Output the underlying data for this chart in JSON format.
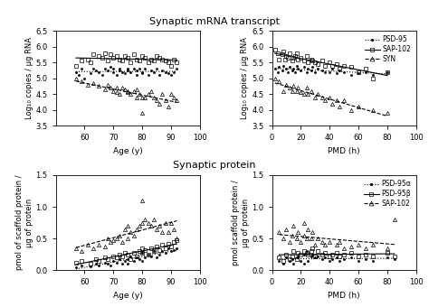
{
  "title_top": "Synaptic mRNA transcript",
  "title_bottom": "Synaptic protein",
  "mrna_age": {
    "xlabel": "Age (y)",
    "ylabel": "Log₁₀ copies / µg RNA",
    "xlim": [
      50,
      100
    ],
    "ylim": [
      3.5,
      6.5
    ],
    "xticks": [
      60,
      70,
      80,
      90,
      100
    ],
    "yticks": [
      3.5,
      4.0,
      4.5,
      5.0,
      5.5,
      6.0,
      6.5
    ],
    "psd95_x": [
      57,
      58,
      59,
      60,
      62,
      63,
      64,
      65,
      66,
      67,
      68,
      69,
      70,
      70,
      71,
      72,
      72,
      73,
      74,
      75,
      75,
      76,
      77,
      78,
      78,
      79,
      80,
      80,
      81,
      82,
      83,
      84,
      85,
      86,
      87,
      88,
      89,
      90,
      91,
      92
    ],
    "psd95_y": [
      5.2,
      5.1,
      5.3,
      5.0,
      5.15,
      5.3,
      5.25,
      5.2,
      5.1,
      5.3,
      5.25,
      5.35,
      5.2,
      5.3,
      5.1,
      5.25,
      5.3,
      5.2,
      5.15,
      5.3,
      5.25,
      5.2,
      5.3,
      5.1,
      5.25,
      5.3,
      5.2,
      5.15,
      5.3,
      5.1,
      5.25,
      5.2,
      5.3,
      5.1,
      5.25,
      5.2,
      5.15,
      5.1,
      5.2,
      5.3
    ],
    "sap102_x": [
      57,
      59,
      61,
      62,
      63,
      65,
      66,
      67,
      68,
      69,
      70,
      71,
      72,
      73,
      74,
      75,
      76,
      77,
      78,
      79,
      80,
      81,
      82,
      83,
      84,
      85,
      86,
      87,
      88,
      89,
      90,
      91,
      92
    ],
    "sap102_y": [
      5.4,
      5.55,
      5.6,
      5.5,
      5.75,
      5.7,
      5.65,
      5.8,
      5.55,
      5.75,
      5.65,
      5.7,
      5.6,
      5.55,
      5.7,
      5.65,
      5.5,
      5.75,
      5.6,
      5.55,
      5.7,
      5.65,
      5.5,
      5.6,
      5.55,
      5.7,
      5.65,
      5.6,
      5.55,
      5.5,
      5.4,
      5.6,
      5.5
    ],
    "syn_x": [
      57,
      59,
      61,
      63,
      65,
      67,
      68,
      69,
      70,
      71,
      71,
      72,
      73,
      74,
      75,
      75,
      76,
      77,
      78,
      78,
      79,
      80,
      80,
      81,
      82,
      83,
      84,
      85,
      86,
      87,
      88,
      89,
      90,
      91,
      92
    ],
    "syn_y": [
      5.0,
      4.9,
      4.8,
      4.85,
      4.75,
      4.65,
      4.8,
      4.7,
      4.6,
      4.55,
      4.7,
      4.5,
      4.7,
      4.65,
      4.55,
      4.6,
      4.5,
      4.6,
      4.4,
      4.65,
      4.5,
      3.9,
      4.4,
      4.4,
      4.5,
      4.6,
      4.4,
      4.3,
      4.2,
      4.5,
      4.3,
      4.1,
      4.5,
      4.4,
      4.3
    ],
    "psd95_reg": [
      57,
      92,
      5.22,
      5.2
    ],
    "sap102_reg": [
      57,
      92,
      5.35,
      5.35
    ],
    "syn_reg": [
      57,
      92,
      4.85,
      4.8
    ]
  },
  "mrna_pmd": {
    "xlabel": "PMD (h)",
    "ylabel": "Log₁₀ copies / µg RNA",
    "xlim": [
      0,
      100
    ],
    "ylim": [
      3.5,
      6.5
    ],
    "xticks": [
      0,
      20,
      40,
      60,
      80,
      100
    ],
    "yticks": [
      3.5,
      4.0,
      4.5,
      5.0,
      5.5,
      6.0,
      6.5
    ],
    "psd95_x": [
      2,
      4,
      5,
      7,
      8,
      10,
      11,
      12,
      14,
      15,
      16,
      17,
      18,
      20,
      22,
      24,
      25,
      27,
      28,
      30,
      32,
      35,
      37,
      40,
      42,
      45,
      47,
      50,
      55,
      60,
      65,
      70,
      80
    ],
    "psd95_y": [
      5.3,
      5.2,
      5.35,
      5.25,
      5.4,
      5.3,
      5.2,
      5.35,
      5.25,
      5.3,
      5.2,
      5.4,
      5.3,
      5.25,
      5.35,
      5.2,
      5.3,
      5.25,
      5.35,
      5.2,
      5.3,
      5.25,
      5.2,
      5.2,
      5.3,
      5.15,
      5.25,
      5.2,
      5.1,
      5.15,
      5.2,
      5.1,
      5.2
    ],
    "sap102_x": [
      2,
      4,
      5,
      7,
      8,
      9,
      10,
      11,
      12,
      14,
      15,
      16,
      17,
      18,
      20,
      22,
      24,
      25,
      27,
      28,
      30,
      32,
      35,
      37,
      40,
      42,
      45,
      47,
      50,
      55,
      60,
      65,
      70,
      80
    ],
    "sap102_y": [
      5.9,
      5.8,
      5.6,
      5.75,
      5.85,
      5.6,
      5.7,
      5.65,
      5.8,
      5.55,
      5.65,
      5.7,
      5.8,
      5.6,
      5.65,
      5.55,
      5.7,
      5.5,
      5.6,
      5.55,
      5.5,
      5.45,
      5.55,
      5.4,
      5.5,
      5.4,
      5.45,
      5.3,
      5.4,
      5.35,
      5.2,
      5.3,
      5.0,
      5.2
    ],
    "syn_x": [
      2,
      5,
      8,
      10,
      12,
      14,
      15,
      17,
      18,
      20,
      22,
      24,
      25,
      27,
      30,
      32,
      35,
      37,
      40,
      42,
      45,
      47,
      50,
      55,
      60,
      70,
      80
    ],
    "syn_y": [
      5.0,
      4.9,
      4.6,
      4.8,
      4.7,
      4.6,
      4.75,
      4.6,
      4.7,
      4.55,
      4.5,
      4.7,
      4.5,
      4.6,
      4.4,
      4.5,
      4.4,
      4.3,
      4.4,
      4.2,
      4.3,
      4.1,
      4.3,
      4.0,
      4.1,
      4.0,
      3.9
    ],
    "psd95_reg": [
      0,
      90,
      5.28,
      5.12
    ],
    "sap102_reg": [
      0,
      90,
      5.65,
      5.1
    ],
    "syn_reg": [
      0,
      90,
      4.92,
      4.45
    ]
  },
  "prot_age": {
    "xlabel": "Age (y)",
    "ylabel": "pmol of scaffold protein /\nµg of protein",
    "xlim": [
      50,
      100
    ],
    "ylim": [
      0.0,
      1.5
    ],
    "xticks": [
      60,
      70,
      80,
      90,
      100
    ],
    "yticks": [
      0.0,
      0.5,
      1.0,
      1.5
    ],
    "psd95a_x": [
      57,
      59,
      62,
      64,
      65,
      67,
      68,
      69,
      70,
      71,
      72,
      73,
      74,
      75,
      75,
      76,
      77,
      78,
      79,
      80,
      80,
      81,
      82,
      83,
      84,
      85,
      86,
      87,
      88,
      89,
      90,
      91,
      92
    ],
    "psd95a_y": [
      0.05,
      0.08,
      0.06,
      0.1,
      0.08,
      0.12,
      0.1,
      0.07,
      0.15,
      0.12,
      0.18,
      0.1,
      0.15,
      0.18,
      0.1,
      0.22,
      0.15,
      0.2,
      0.18,
      0.28,
      0.15,
      0.2,
      0.25,
      0.22,
      0.3,
      0.2,
      0.25,
      0.3,
      0.28,
      0.35,
      0.3,
      0.32,
      0.35
    ],
    "psd95b_x": [
      57,
      59,
      62,
      64,
      65,
      67,
      68,
      70,
      71,
      72,
      73,
      74,
      75,
      76,
      77,
      78,
      79,
      80,
      80,
      81,
      82,
      83,
      84,
      85,
      86,
      87,
      88,
      89,
      90,
      91,
      92
    ],
    "psd95b_y": [
      0.12,
      0.15,
      0.1,
      0.18,
      0.15,
      0.2,
      0.18,
      0.22,
      0.2,
      0.25,
      0.22,
      0.28,
      0.25,
      0.18,
      0.28,
      0.22,
      0.3,
      0.28,
      0.35,
      0.32,
      0.25,
      0.35,
      0.3,
      0.38,
      0.32,
      0.4,
      0.35,
      0.42,
      0.38,
      0.45,
      0.48
    ],
    "sap102_x": [
      57,
      59,
      61,
      63,
      65,
      67,
      68,
      69,
      70,
      71,
      72,
      73,
      74,
      75,
      75,
      76,
      77,
      78,
      79,
      80,
      80,
      81,
      82,
      83,
      84,
      85,
      86,
      87,
      88,
      89,
      90,
      91,
      92
    ],
    "sap102_y": [
      0.35,
      0.3,
      0.4,
      0.35,
      0.4,
      0.38,
      0.5,
      0.45,
      0.48,
      0.5,
      0.55,
      0.45,
      0.65,
      0.7,
      0.5,
      0.6,
      0.55,
      0.65,
      0.7,
      1.1,
      0.75,
      0.8,
      0.75,
      0.7,
      0.8,
      0.65,
      0.7,
      0.6,
      0.75,
      0.6,
      0.75,
      0.65,
      0.5
    ],
    "psd95a_reg": [
      57,
      92,
      0.05,
      0.38
    ],
    "psd95b_reg": [
      57,
      92,
      0.1,
      0.45
    ],
    "sap102_reg": [
      57,
      92,
      0.32,
      0.6
    ]
  },
  "prot_pmd": {
    "xlabel": "PMD (h)",
    "ylabel": "pmol scaffold protein /\nµg of protein",
    "xlim": [
      0,
      100
    ],
    "ylim": [
      0.0,
      1.5
    ],
    "xticks": [
      0,
      20,
      40,
      60,
      80,
      100
    ],
    "yticks": [
      0.0,
      0.5,
      1.0,
      1.5
    ],
    "psd95a_x": [
      5,
      8,
      10,
      12,
      14,
      15,
      17,
      18,
      20,
      22,
      22,
      24,
      25,
      27,
      28,
      30,
      32,
      35,
      37,
      40,
      42,
      45,
      47,
      50,
      55,
      60,
      65,
      70,
      80,
      85
    ],
    "psd95a_y": [
      0.15,
      0.1,
      0.2,
      0.15,
      0.18,
      0.1,
      0.2,
      0.22,
      0.15,
      0.25,
      0.1,
      0.3,
      0.15,
      0.22,
      0.25,
      0.2,
      0.22,
      0.18,
      0.2,
      0.15,
      0.18,
      0.2,
      0.15,
      0.18,
      0.2,
      0.15,
      0.18,
      0.15,
      0.2,
      0.18
    ],
    "psd95b_x": [
      5,
      8,
      10,
      12,
      14,
      15,
      17,
      18,
      20,
      22,
      24,
      25,
      27,
      28,
      30,
      32,
      35,
      37,
      40,
      42,
      45,
      47,
      50,
      55,
      60,
      65,
      70,
      80,
      85
    ],
    "psd95b_y": [
      0.2,
      0.15,
      0.25,
      0.18,
      0.22,
      0.3,
      0.18,
      0.28,
      0.25,
      0.3,
      0.28,
      0.25,
      0.3,
      0.35,
      0.22,
      0.3,
      0.25,
      0.28,
      0.22,
      0.25,
      0.28,
      0.22,
      0.25,
      0.28,
      0.22,
      0.25,
      0.22,
      0.28,
      0.22
    ],
    "sap102_x": [
      5,
      8,
      10,
      12,
      14,
      15,
      17,
      18,
      20,
      22,
      22,
      24,
      25,
      27,
      28,
      30,
      32,
      35,
      37,
      40,
      45,
      47,
      50,
      55,
      60,
      65,
      70,
      80,
      85
    ],
    "sap102_y": [
      0.6,
      0.5,
      0.65,
      0.45,
      0.55,
      0.7,
      0.5,
      0.6,
      0.45,
      0.55,
      0.75,
      0.5,
      0.65,
      0.5,
      0.6,
      0.4,
      0.5,
      0.45,
      0.4,
      0.45,
      0.4,
      0.45,
      0.35,
      0.38,
      0.4,
      0.35,
      0.4,
      0.35,
      0.8
    ],
    "psd95a_reg": [
      0,
      90,
      0.18,
      0.2
    ],
    "psd95b_reg": [
      0,
      90,
      0.24,
      0.26
    ],
    "sap102_reg": [
      0,
      90,
      0.55,
      0.4
    ]
  },
  "legend_mrna": {
    "labels": [
      "PSD-95",
      "SAP-102",
      "SYN"
    ],
    "markers": [
      ".",
      "s",
      "^"
    ],
    "linestyles": [
      "dotted",
      "solid",
      "dashed"
    ]
  },
  "legend_prot": {
    "labels": [
      "PSD-95α",
      "PSD-95β",
      "SAP-102"
    ],
    "markers": [
      ".",
      "s",
      "^"
    ],
    "linestyles": [
      "dotted",
      "solid",
      "dashed"
    ]
  },
  "fig_width": 4.74,
  "fig_height": 3.4,
  "dpi": 100
}
